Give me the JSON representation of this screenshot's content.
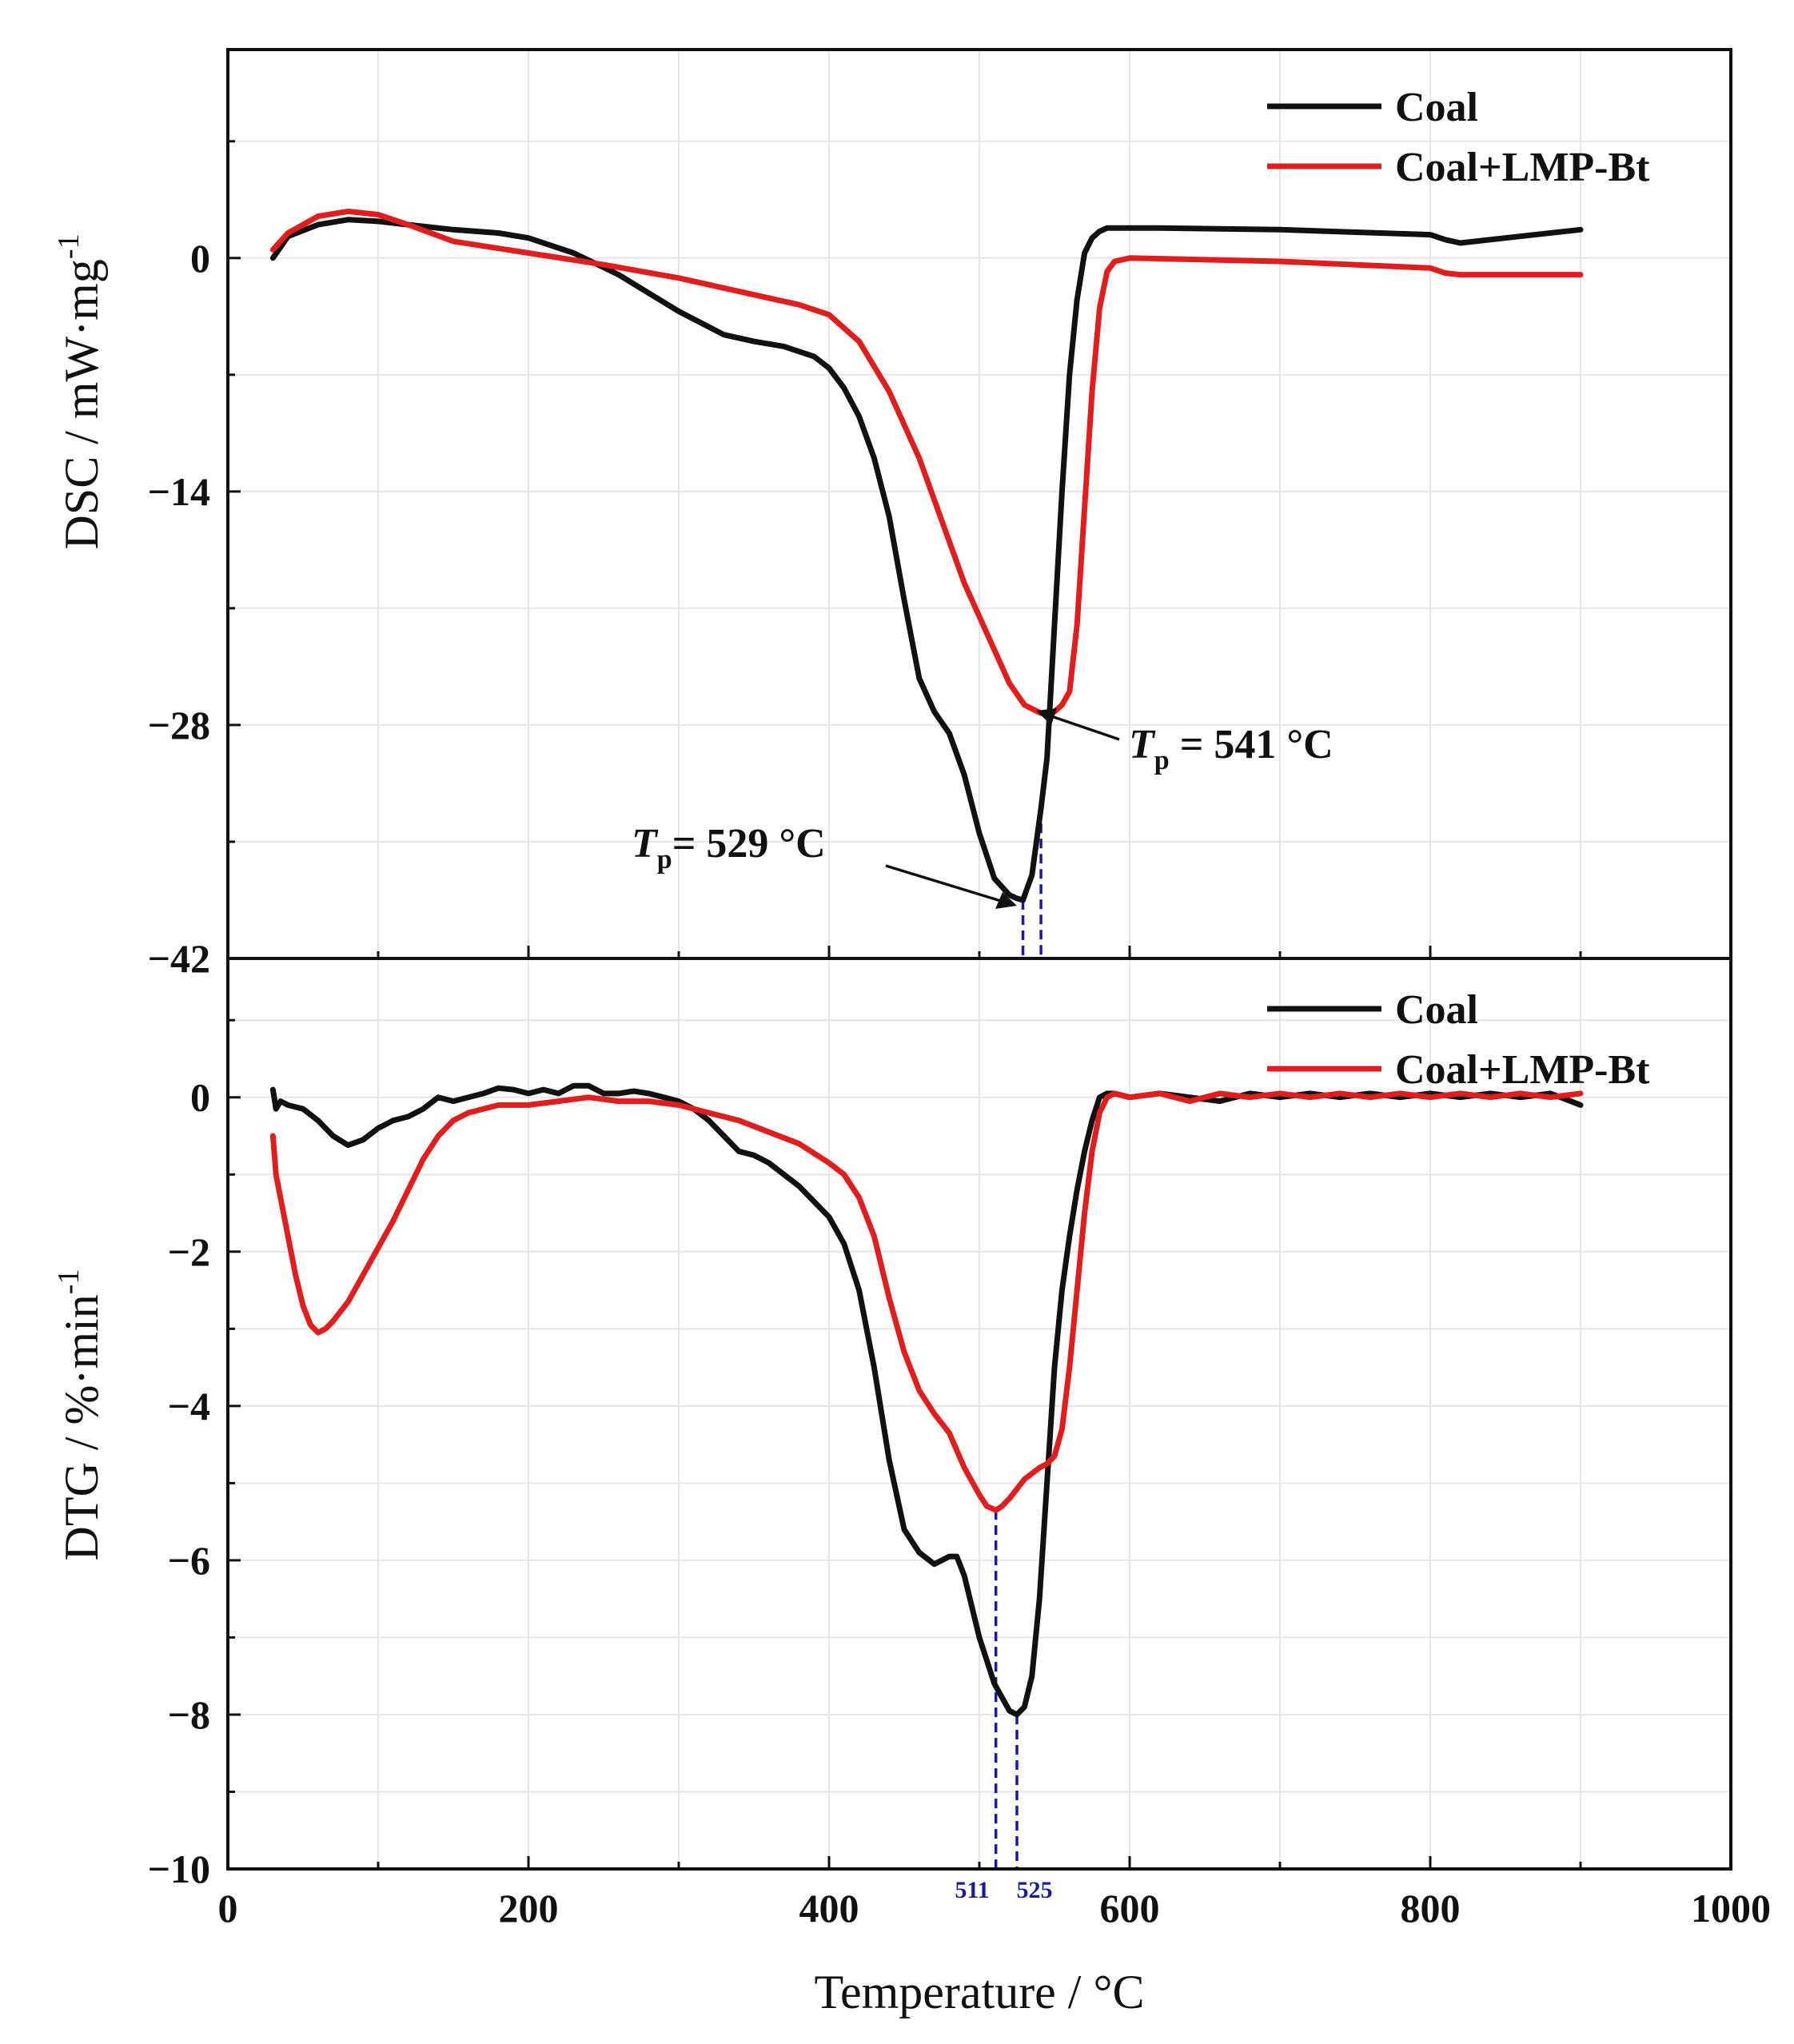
{
  "chart_data": [
    {
      "type": "line",
      "panel": "top",
      "ylabel": "DSC / mW·mg",
      "ylabel_sup": "-1",
      "xlim": [
        0,
        1000
      ],
      "ylim": [
        -42,
        12.5
      ],
      "yticks": [
        0,
        -14,
        -28,
        -42
      ],
      "yticks_labels": [
        "0",
        "−14",
        "−28",
        "−42"
      ],
      "yminor": [
        7,
        -7,
        -21,
        -35
      ],
      "legend_position": "top-right",
      "series": [
        {
          "name": "Coal",
          "color": "#111111",
          "x": [
            30,
            40,
            60,
            80,
            100,
            120,
            150,
            180,
            200,
            230,
            260,
            280,
            300,
            330,
            350,
            370,
            390,
            400,
            410,
            420,
            430,
            440,
            450,
            460,
            470,
            480,
            490,
            500,
            510,
            520,
            525,
            529,
            535,
            541,
            545,
            550,
            555,
            560,
            565,
            570,
            575,
            580,
            585,
            590,
            600,
            620,
            700,
            800,
            810,
            820,
            850,
            900
          ],
          "y": [
            0,
            1.3,
            2,
            2.3,
            2.2,
            2,
            1.7,
            1.5,
            1.2,
            0.3,
            -1,
            -2.1,
            -3.2,
            -4.6,
            -5,
            -5.3,
            -5.9,
            -6.6,
            -7.8,
            -9.5,
            -12,
            -15.5,
            -20.5,
            -25.2,
            -27.2,
            -28.5,
            -31,
            -34.5,
            -37.2,
            -38.2,
            -38.4,
            -38.5,
            -37,
            -33,
            -30,
            -22,
            -14,
            -7,
            -2.5,
            0.3,
            1.2,
            1.6,
            1.8,
            1.8,
            1.8,
            1.8,
            1.7,
            1.4,
            1.1,
            0.9,
            1.2,
            1.7
          ]
        },
        {
          "name": "Coal+LMP-Bt",
          "color": "#e01e1e",
          "x": [
            30,
            40,
            60,
            80,
            100,
            120,
            150,
            200,
            250,
            300,
            330,
            350,
            380,
            400,
            420,
            440,
            460,
            480,
            490,
            500,
            510,
            520,
            530,
            541,
            550,
            555,
            560,
            565,
            570,
            575,
            580,
            585,
            590,
            600,
            700,
            800,
            810,
            820,
            900
          ],
          "y": [
            0.5,
            1.5,
            2.5,
            2.8,
            2.6,
            2,
            1,
            0.3,
            -0.4,
            -1.2,
            -1.8,
            -2.2,
            -2.8,
            -3.4,
            -5,
            -8,
            -12,
            -17,
            -19.5,
            -21.5,
            -23.5,
            -25.5,
            -26.8,
            -27.3,
            -27.2,
            -26.8,
            -26,
            -22,
            -15,
            -8,
            -3,
            -0.8,
            -0.2,
            0,
            -0.2,
            -0.6,
            -0.9,
            -1,
            -1
          ]
        }
      ],
      "annotations": [
        {
          "text_main": "T",
          "text_sub": "p",
          "text_rest": "= 529 °C",
          "target_x": 529,
          "target_y": -38.5
        },
        {
          "text_main": "T",
          "text_sub": "p",
          "text_rest": " = 541 °C",
          "target_x": 541,
          "target_y": -27.3
        }
      ],
      "marker_lines": [
        529,
        541
      ]
    },
    {
      "type": "line",
      "panel": "bottom",
      "ylabel": "DTG / %·min",
      "ylabel_sup": "-1",
      "xlabel": "Temperature / °C",
      "xlim": [
        0,
        1000
      ],
      "xticks": [
        0,
        200,
        400,
        600,
        800,
        1000
      ],
      "xticks_labels": [
        "0",
        "200",
        "400",
        "600",
        "800",
        "1000"
      ],
      "xminor": [
        100,
        300,
        500,
        700,
        900
      ],
      "ylim": [
        -10,
        1.8
      ],
      "yticks": [
        0,
        -2,
        -4,
        -6,
        -8,
        -10
      ],
      "yticks_labels": [
        "0",
        "−2",
        "−4",
        "−6",
        "−8",
        "−10"
      ],
      "yminor": [
        1,
        -1,
        -3,
        -5,
        -7,
        -9
      ],
      "legend_position": "top-right",
      "series": [
        {
          "name": "Coal",
          "color": "#111111",
          "x": [
            30,
            32,
            35,
            40,
            50,
            60,
            70,
            80,
            90,
            100,
            110,
            120,
            130,
            140,
            150,
            160,
            170,
            180,
            190,
            200,
            210,
            220,
            230,
            240,
            250,
            260,
            270,
            280,
            290,
            300,
            310,
            320,
            330,
            340,
            350,
            360,
            370,
            380,
            390,
            400,
            410,
            420,
            430,
            440,
            450,
            460,
            470,
            480,
            485,
            490,
            500,
            510,
            520,
            525,
            530,
            535,
            540,
            545,
            550,
            555,
            560,
            565,
            570,
            575,
            580,
            585,
            590,
            600,
            620,
            640,
            660,
            680,
            700,
            720,
            740,
            760,
            780,
            800,
            820,
            840,
            860,
            880,
            900
          ],
          "y": [
            0.1,
            -0.15,
            -0.05,
            -0.1,
            -0.15,
            -0.3,
            -0.5,
            -0.62,
            -0.55,
            -0.4,
            -0.3,
            -0.25,
            -0.15,
            0,
            -0.05,
            0,
            0.05,
            0.12,
            0.1,
            0.05,
            0.1,
            0.05,
            0.15,
            0.15,
            0.05,
            0.05,
            0.08,
            0.05,
            0,
            -0.05,
            -0.15,
            -0.3,
            -0.5,
            -0.7,
            -0.75,
            -0.85,
            -1,
            -1.15,
            -1.35,
            -1.55,
            -1.9,
            -2.5,
            -3.5,
            -4.7,
            -5.6,
            -5.9,
            -6.05,
            -5.95,
            -5.95,
            -6.2,
            -7,
            -7.6,
            -7.95,
            -8,
            -7.9,
            -7.5,
            -6.5,
            -5,
            -3.5,
            -2.5,
            -1.8,
            -1.2,
            -0.7,
            -0.3,
            0,
            0.05,
            0.05,
            0,
            0.05,
            0,
            -0.05,
            0.05,
            0,
            0.05,
            0,
            0.05,
            0,
            0.05,
            0,
            0.05,
            0,
            0.05,
            -0.1
          ]
        },
        {
          "name": "Coal+LMP-Bt",
          "color": "#e01e1e",
          "x": [
            30,
            32,
            35,
            40,
            45,
            50,
            55,
            60,
            65,
            70,
            80,
            90,
            100,
            110,
            120,
            130,
            140,
            150,
            160,
            170,
            180,
            190,
            200,
            220,
            240,
            260,
            280,
            300,
            320,
            340,
            360,
            380,
            400,
            410,
            420,
            430,
            440,
            450,
            460,
            470,
            480,
            490,
            500,
            505,
            511,
            515,
            520,
            530,
            540,
            545,
            550,
            555,
            560,
            565,
            570,
            575,
            580,
            585,
            590,
            600,
            620,
            640,
            660,
            680,
            700,
            720,
            740,
            760,
            780,
            800,
            820,
            840,
            860,
            880,
            900
          ],
          "y": [
            -0.5,
            -1,
            -1.3,
            -1.8,
            -2.3,
            -2.7,
            -2.95,
            -3.05,
            -3,
            -2.9,
            -2.65,
            -2.3,
            -1.95,
            -1.6,
            -1.2,
            -0.8,
            -0.5,
            -0.3,
            -0.2,
            -0.15,
            -0.1,
            -0.1,
            -0.1,
            -0.05,
            0,
            -0.05,
            -0.05,
            -0.1,
            -0.2,
            -0.3,
            -0.45,
            -0.6,
            -0.85,
            -1,
            -1.3,
            -1.8,
            -2.6,
            -3.3,
            -3.8,
            -4.1,
            -4.35,
            -4.8,
            -5.15,
            -5.3,
            -5.35,
            -5.3,
            -5.2,
            -4.95,
            -4.8,
            -4.75,
            -4.65,
            -4.3,
            -3.5,
            -2.5,
            -1.5,
            -0.7,
            -0.2,
            0,
            0.05,
            0,
            0.05,
            -0.05,
            0.05,
            0,
            0.05,
            0,
            0.05,
            0,
            0.05,
            0,
            0.05,
            0,
            0.05,
            0,
            0.05
          ]
        }
      ],
      "marker_lines": [
        511,
        525
      ],
      "marker_labels": [
        "511",
        "525"
      ]
    }
  ]
}
